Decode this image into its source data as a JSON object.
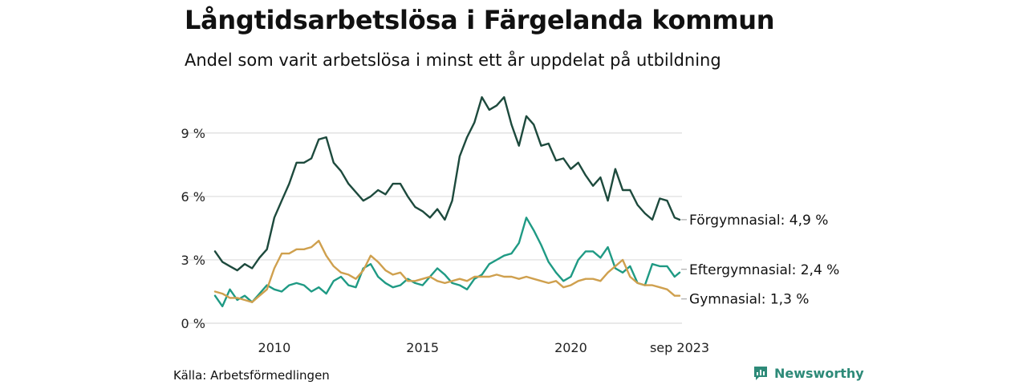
{
  "header": {
    "title": "Långtidsarbetslösa i Färgelanda kommun",
    "subtitle": "Andel som varit arbetslösa i minst ett år uppdelat på utbildning"
  },
  "footer": {
    "source": "Källa: Arbetsförmedlingen",
    "brand": "Newsworthy",
    "brand_icon": "newsworthy-logo-icon"
  },
  "colors": {
    "forgymnasial": "#1d4a3d",
    "eftergymnasial": "#1f9a84",
    "gymnasial": "#cfa04e",
    "grid": "#dcdcdc",
    "brand": "#2d8a78"
  },
  "chart_data": {
    "type": "line",
    "x_unit": "year (decimal)",
    "y_unit": "percent",
    "ylim": [
      0,
      11.5
    ],
    "xlim": [
      2008.0,
      2023.75
    ],
    "yticks": [
      0,
      3,
      6,
      9
    ],
    "ytick_labels": [
      "0 %",
      "3 %",
      "6 %",
      "9 %"
    ],
    "xticks": [
      2010,
      2015,
      2020,
      2023.67
    ],
    "xtick_labels": [
      "2010",
      "2015",
      "2020",
      "sep 2023"
    ],
    "grid": "horizontal",
    "series": [
      {
        "name": "Förgymnasial",
        "label": "Förgymnasial: 4,9 %",
        "color": "#1d4a3d",
        "points": [
          [
            2008.0,
            3.4
          ],
          [
            2008.25,
            2.9
          ],
          [
            2008.5,
            2.7
          ],
          [
            2008.75,
            2.5
          ],
          [
            2009.0,
            2.8
          ],
          [
            2009.25,
            2.6
          ],
          [
            2009.5,
            3.1
          ],
          [
            2009.75,
            3.5
          ],
          [
            2010.0,
            5.0
          ],
          [
            2010.25,
            5.8
          ],
          [
            2010.5,
            6.6
          ],
          [
            2010.75,
            7.6
          ],
          [
            2011.0,
            7.6
          ],
          [
            2011.25,
            7.8
          ],
          [
            2011.5,
            8.7
          ],
          [
            2011.75,
            8.8
          ],
          [
            2012.0,
            7.6
          ],
          [
            2012.25,
            7.2
          ],
          [
            2012.5,
            6.6
          ],
          [
            2012.75,
            6.2
          ],
          [
            2013.0,
            5.8
          ],
          [
            2013.25,
            6.0
          ],
          [
            2013.5,
            6.3
          ],
          [
            2013.75,
            6.1
          ],
          [
            2014.0,
            6.6
          ],
          [
            2014.25,
            6.6
          ],
          [
            2014.5,
            6.0
          ],
          [
            2014.75,
            5.5
          ],
          [
            2015.0,
            5.3
          ],
          [
            2015.25,
            5.0
          ],
          [
            2015.5,
            5.4
          ],
          [
            2015.75,
            4.9
          ],
          [
            2016.0,
            5.8
          ],
          [
            2016.25,
            7.9
          ],
          [
            2016.5,
            8.8
          ],
          [
            2016.75,
            9.5
          ],
          [
            2017.0,
            10.7
          ],
          [
            2017.25,
            10.1
          ],
          [
            2017.5,
            10.3
          ],
          [
            2017.75,
            10.7
          ],
          [
            2018.0,
            9.4
          ],
          [
            2018.25,
            8.4
          ],
          [
            2018.5,
            9.8
          ],
          [
            2018.75,
            9.4
          ],
          [
            2019.0,
            8.4
          ],
          [
            2019.25,
            8.5
          ],
          [
            2019.5,
            7.7
          ],
          [
            2019.75,
            7.8
          ],
          [
            2020.0,
            7.3
          ],
          [
            2020.25,
            7.6
          ],
          [
            2020.5,
            7.0
          ],
          [
            2020.75,
            6.5
          ],
          [
            2021.0,
            6.9
          ],
          [
            2021.25,
            5.8
          ],
          [
            2021.5,
            7.3
          ],
          [
            2021.75,
            6.3
          ],
          [
            2022.0,
            6.3
          ],
          [
            2022.25,
            5.6
          ],
          [
            2022.5,
            5.2
          ],
          [
            2022.75,
            4.9
          ],
          [
            2023.0,
            5.9
          ],
          [
            2023.25,
            5.8
          ],
          [
            2023.5,
            5.0
          ],
          [
            2023.67,
            4.9
          ]
        ]
      },
      {
        "name": "Eftergymnasial",
        "label": "Eftergymnasial: 2,4 %",
        "color": "#1f9a84",
        "points": [
          [
            2008.0,
            1.3
          ],
          [
            2008.25,
            0.8
          ],
          [
            2008.5,
            1.6
          ],
          [
            2008.75,
            1.1
          ],
          [
            2009.0,
            1.3
          ],
          [
            2009.25,
            1.0
          ],
          [
            2009.5,
            1.4
          ],
          [
            2009.75,
            1.8
          ],
          [
            2010.0,
            1.6
          ],
          [
            2010.25,
            1.5
          ],
          [
            2010.5,
            1.8
          ],
          [
            2010.75,
            1.9
          ],
          [
            2011.0,
            1.8
          ],
          [
            2011.25,
            1.5
          ],
          [
            2011.5,
            1.7
          ],
          [
            2011.75,
            1.4
          ],
          [
            2012.0,
            2.0
          ],
          [
            2012.25,
            2.2
          ],
          [
            2012.5,
            1.8
          ],
          [
            2012.75,
            1.7
          ],
          [
            2013.0,
            2.6
          ],
          [
            2013.25,
            2.8
          ],
          [
            2013.5,
            2.2
          ],
          [
            2013.75,
            1.9
          ],
          [
            2014.0,
            1.7
          ],
          [
            2014.25,
            1.8
          ],
          [
            2014.5,
            2.1
          ],
          [
            2014.75,
            1.9
          ],
          [
            2015.0,
            1.8
          ],
          [
            2015.25,
            2.2
          ],
          [
            2015.5,
            2.6
          ],
          [
            2015.75,
            2.3
          ],
          [
            2016.0,
            1.9
          ],
          [
            2016.25,
            1.8
          ],
          [
            2016.5,
            1.6
          ],
          [
            2016.75,
            2.1
          ],
          [
            2017.0,
            2.3
          ],
          [
            2017.25,
            2.8
          ],
          [
            2017.5,
            3.0
          ],
          [
            2017.75,
            3.2
          ],
          [
            2018.0,
            3.3
          ],
          [
            2018.25,
            3.8
          ],
          [
            2018.5,
            5.0
          ],
          [
            2018.75,
            4.4
          ],
          [
            2019.0,
            3.7
          ],
          [
            2019.25,
            2.9
          ],
          [
            2019.5,
            2.4
          ],
          [
            2019.75,
            2.0
          ],
          [
            2020.0,
            2.2
          ],
          [
            2020.25,
            3.0
          ],
          [
            2020.5,
            3.4
          ],
          [
            2020.75,
            3.4
          ],
          [
            2021.0,
            3.1
          ],
          [
            2021.25,
            3.6
          ],
          [
            2021.5,
            2.6
          ],
          [
            2021.75,
            2.4
          ],
          [
            2022.0,
            2.7
          ],
          [
            2022.25,
            1.9
          ],
          [
            2022.5,
            1.8
          ],
          [
            2022.75,
            2.8
          ],
          [
            2023.0,
            2.7
          ],
          [
            2023.25,
            2.7
          ],
          [
            2023.5,
            2.2
          ],
          [
            2023.67,
            2.4
          ]
        ]
      },
      {
        "name": "Gymnasial",
        "label": "Gymnasial: 1,3 %",
        "color": "#cfa04e",
        "points": [
          [
            2008.0,
            1.5
          ],
          [
            2008.25,
            1.4
          ],
          [
            2008.5,
            1.2
          ],
          [
            2008.75,
            1.2
          ],
          [
            2009.0,
            1.1
          ],
          [
            2009.25,
            1.0
          ],
          [
            2009.5,
            1.3
          ],
          [
            2009.75,
            1.6
          ],
          [
            2010.0,
            2.6
          ],
          [
            2010.25,
            3.3
          ],
          [
            2010.5,
            3.3
          ],
          [
            2010.75,
            3.5
          ],
          [
            2011.0,
            3.5
          ],
          [
            2011.25,
            3.6
          ],
          [
            2011.5,
            3.9
          ],
          [
            2011.75,
            3.2
          ],
          [
            2012.0,
            2.7
          ],
          [
            2012.25,
            2.4
          ],
          [
            2012.5,
            2.3
          ],
          [
            2012.75,
            2.1
          ],
          [
            2013.0,
            2.5
          ],
          [
            2013.25,
            3.2
          ],
          [
            2013.5,
            2.9
          ],
          [
            2013.75,
            2.5
          ],
          [
            2014.0,
            2.3
          ],
          [
            2014.25,
            2.4
          ],
          [
            2014.5,
            2.0
          ],
          [
            2014.75,
            2.0
          ],
          [
            2015.0,
            2.1
          ],
          [
            2015.25,
            2.2
          ],
          [
            2015.5,
            2.0
          ],
          [
            2015.75,
            1.9
          ],
          [
            2016.0,
            2.0
          ],
          [
            2016.25,
            2.1
          ],
          [
            2016.5,
            2.0
          ],
          [
            2016.75,
            2.2
          ],
          [
            2017.0,
            2.2
          ],
          [
            2017.25,
            2.2
          ],
          [
            2017.5,
            2.3
          ],
          [
            2017.75,
            2.2
          ],
          [
            2018.0,
            2.2
          ],
          [
            2018.25,
            2.1
          ],
          [
            2018.5,
            2.2
          ],
          [
            2018.75,
            2.1
          ],
          [
            2019.0,
            2.0
          ],
          [
            2019.25,
            1.9
          ],
          [
            2019.5,
            2.0
          ],
          [
            2019.75,
            1.7
          ],
          [
            2020.0,
            1.8
          ],
          [
            2020.25,
            2.0
          ],
          [
            2020.5,
            2.1
          ],
          [
            2020.75,
            2.1
          ],
          [
            2021.0,
            2.0
          ],
          [
            2021.25,
            2.4
          ],
          [
            2021.5,
            2.7
          ],
          [
            2021.75,
            3.0
          ],
          [
            2022.0,
            2.2
          ],
          [
            2022.25,
            1.9
          ],
          [
            2022.5,
            1.8
          ],
          [
            2022.75,
            1.8
          ],
          [
            2023.0,
            1.7
          ],
          [
            2023.25,
            1.6
          ],
          [
            2023.5,
            1.3
          ],
          [
            2023.67,
            1.3
          ]
        ]
      }
    ]
  }
}
